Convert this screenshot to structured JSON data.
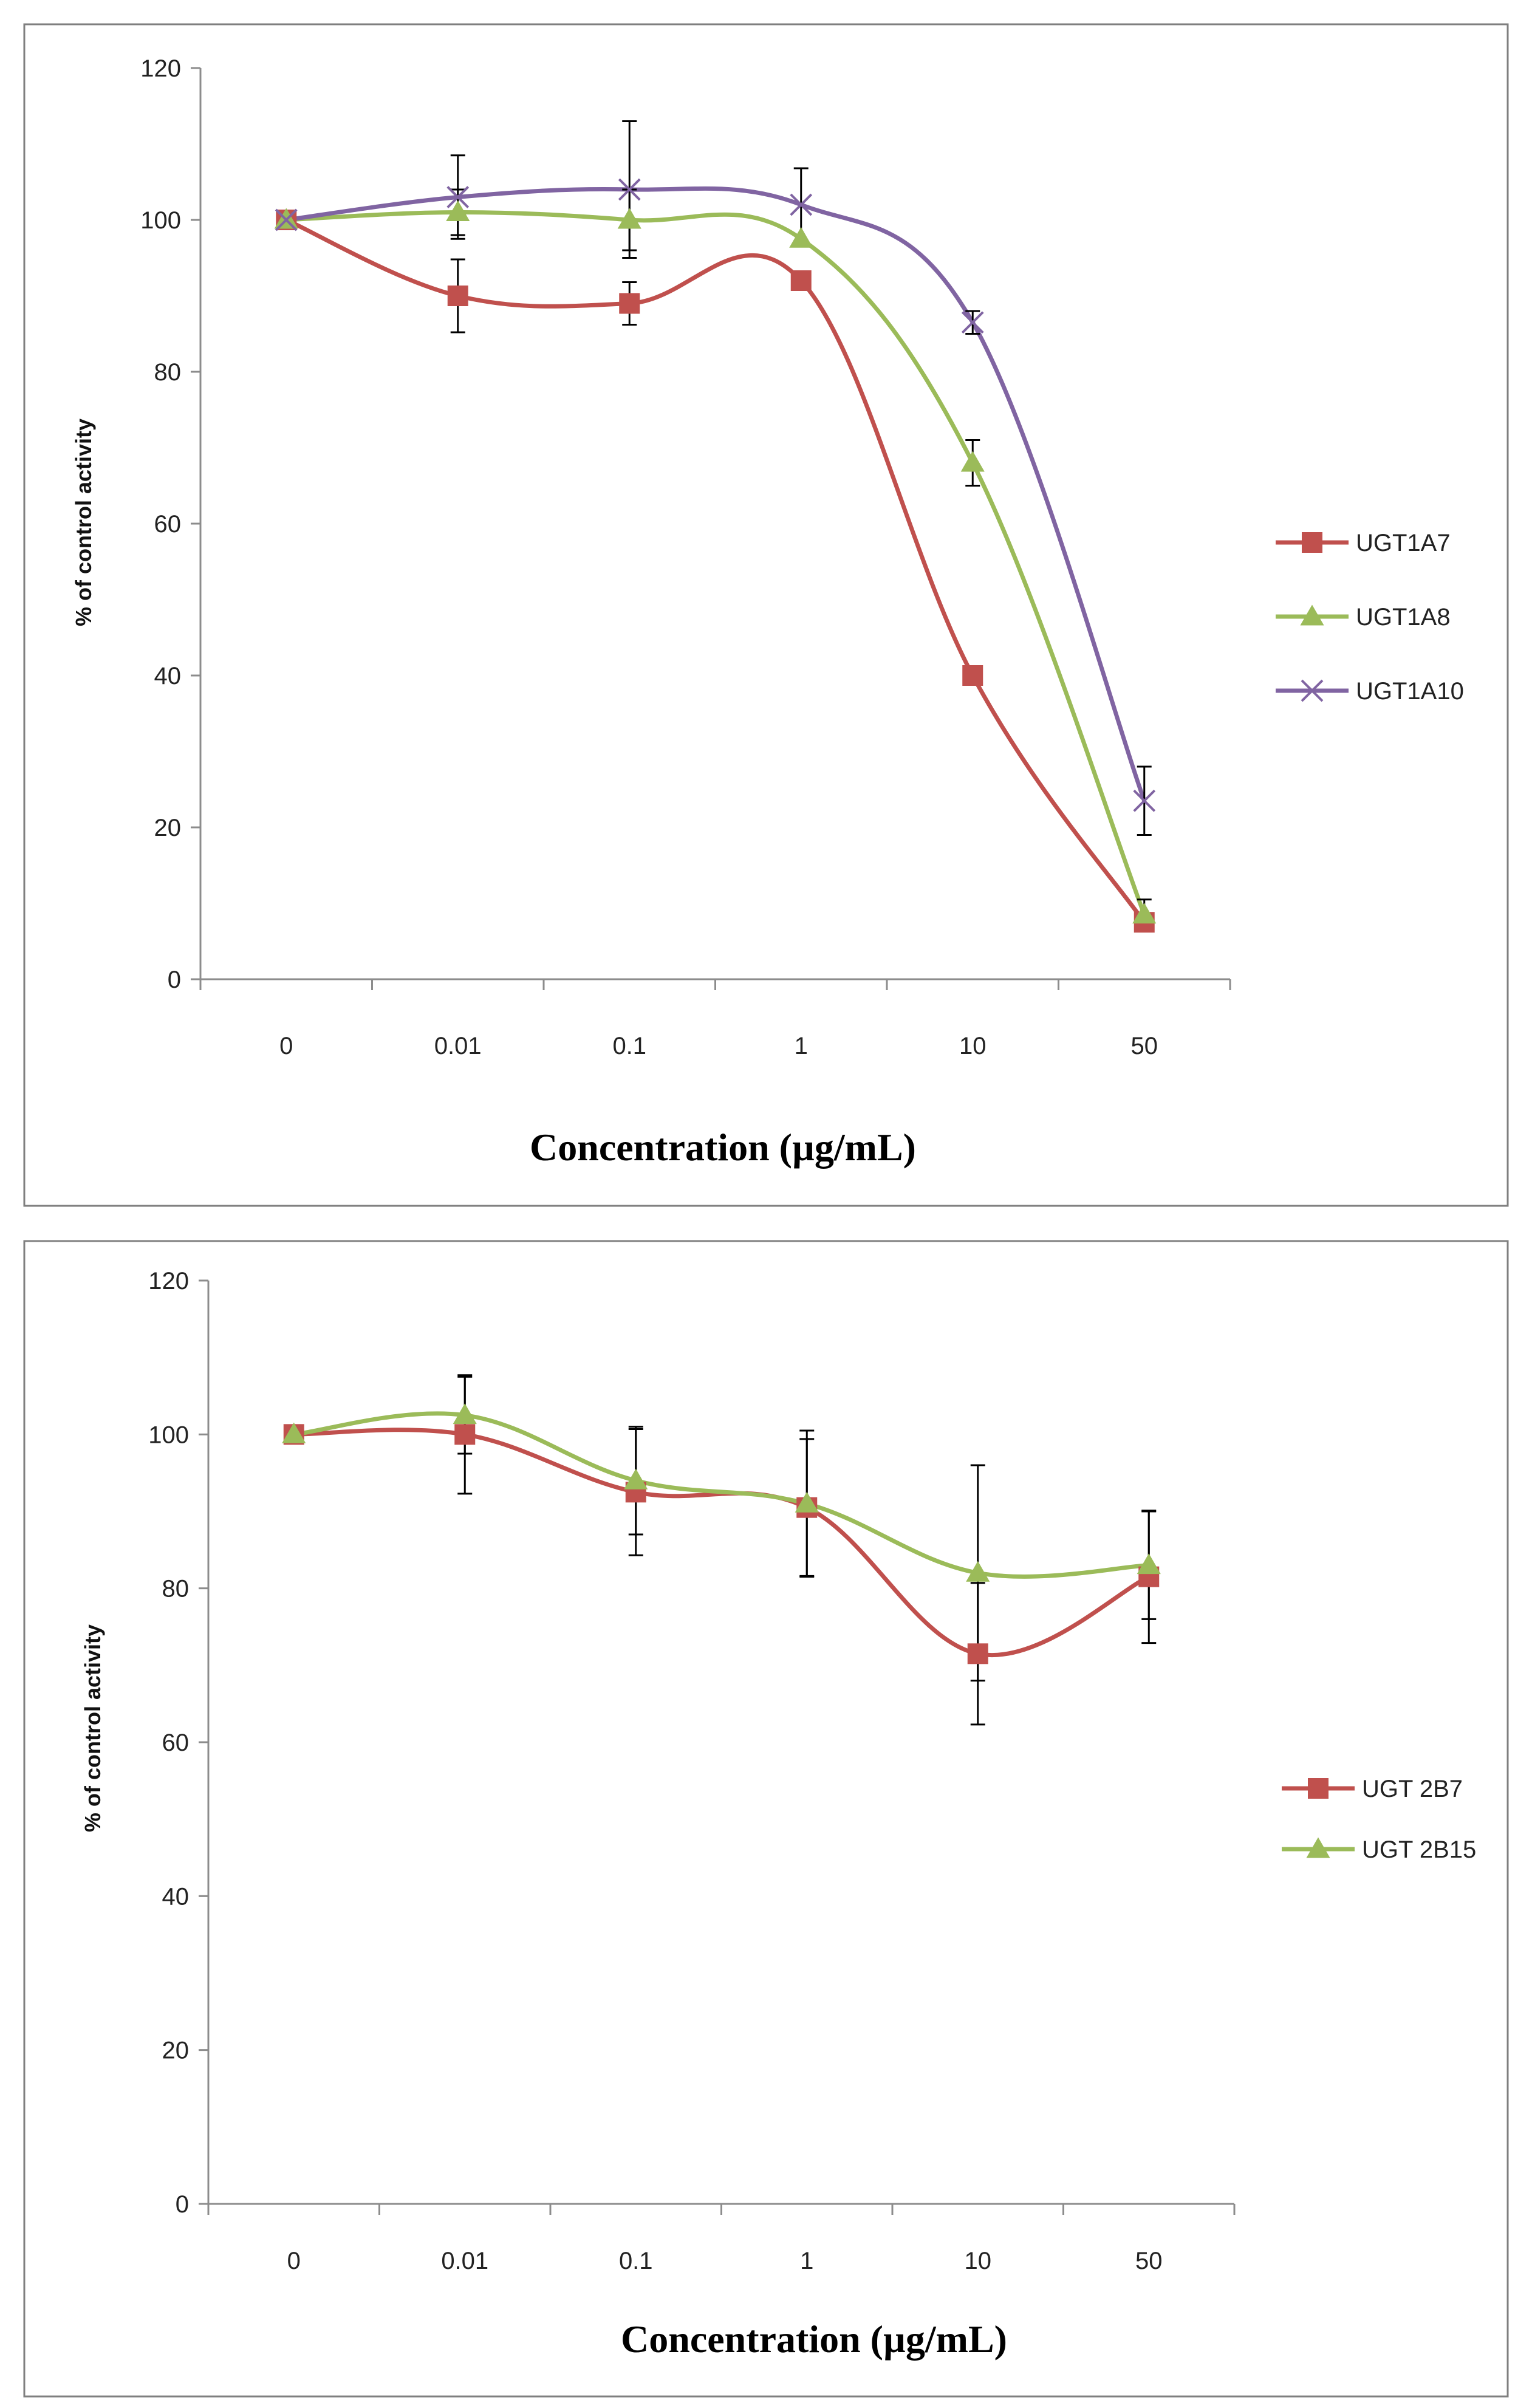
{
  "chart_data": [
    {
      "type": "line",
      "categories": [
        "0",
        "0.01",
        "0.1",
        "1",
        "10",
        "50"
      ],
      "ylabel": "% of control activity",
      "xlabel": "Concentration (µg/mL)",
      "ylim": [
        0,
        120
      ],
      "yticks": [
        "0",
        "20",
        "40",
        "60",
        "80",
        "100",
        "120"
      ],
      "legend_position": "right",
      "series": [
        {
          "name": "UGT1A7",
          "color": "#c0504d",
          "marker": "square",
          "values": [
            100,
            90,
            89,
            92,
            40,
            7.5
          ],
          "errors": [
            0,
            4.8,
            2.8,
            0,
            0,
            0
          ]
        },
        {
          "name": "UGT1A8",
          "color": "#9bbb59",
          "marker": "triangle",
          "values": [
            100,
            101,
            100,
            97.5,
            68,
            8.5
          ],
          "errors": [
            0,
            3,
            4,
            0,
            3,
            2
          ]
        },
        {
          "name": "UGT1A10",
          "color": "#8064a2",
          "marker": "x",
          "values": [
            100,
            103,
            104,
            102,
            86.5,
            23.5
          ],
          "errors": [
            0,
            5.5,
            9,
            4.8,
            1.5,
            4.5
          ]
        }
      ]
    },
    {
      "type": "line",
      "categories": [
        "0",
        "0.01",
        "0.1",
        "1",
        "10",
        "50"
      ],
      "ylabel": "% of control activity",
      "xlabel": "Concentration (µg/mL)",
      "ylim": [
        0,
        120
      ],
      "yticks": [
        "0",
        "20",
        "40",
        "60",
        "80",
        "100",
        "120"
      ],
      "legend_position": "right",
      "series": [
        {
          "name": "UGT 2B7",
          "color": "#c0504d",
          "marker": "square",
          "values": [
            100,
            100,
            92.5,
            90.5,
            71.5,
            81.5
          ],
          "errors": [
            0,
            7.7,
            8.2,
            8.9,
            9.2,
            8.6
          ]
        },
        {
          "name": "UGT 2B15",
          "color": "#9bbb59",
          "marker": "triangle",
          "values": [
            100,
            102.5,
            94,
            91,
            82,
            83
          ],
          "errors": [
            0,
            5,
            7,
            9.5,
            14,
            7
          ]
        }
      ]
    }
  ]
}
